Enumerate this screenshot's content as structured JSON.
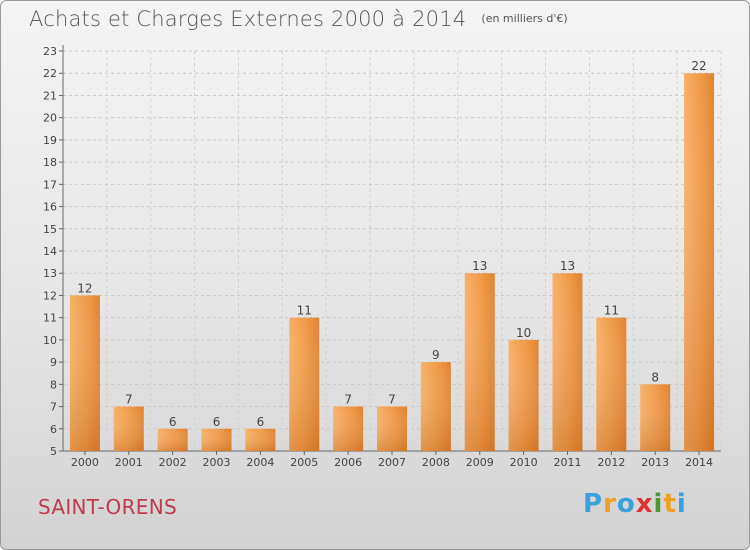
{
  "header": {
    "title": "Achats et Charges Externes 2000 à 2014",
    "subtitle": "(en milliers d'€)"
  },
  "footer": {
    "commune": "SAINT-ORENS",
    "logo": {
      "letters": [
        "P",
        "r",
        "o",
        "x",
        "i",
        "t",
        "i"
      ],
      "colors": [
        "#3aa0d8",
        "#f0a020",
        "#3aa0d8",
        "#e03030",
        "#4a9a30",
        "#f0a020",
        "#3aa0d8"
      ]
    }
  },
  "chart_data": {
    "type": "bar",
    "title": "Achats et Charges Externes 2000 à 2014",
    "subtitle": "(en milliers d'€)",
    "categories": [
      "2000",
      "2001",
      "2002",
      "2003",
      "2004",
      "2005",
      "2006",
      "2007",
      "2008",
      "2009",
      "2010",
      "2011",
      "2012",
      "2013",
      "2014"
    ],
    "values": [
      12,
      7,
      6,
      6,
      6,
      11,
      7,
      7,
      9,
      13,
      10,
      13,
      11,
      8,
      22
    ],
    "ylim": [
      5,
      23
    ],
    "yticks": [
      5,
      6,
      7,
      8,
      9,
      10,
      11,
      12,
      13,
      14,
      15,
      16,
      17,
      18,
      19,
      20,
      21,
      22,
      23
    ],
    "grid": true,
    "colors": {
      "bar_light": "#f6a85a",
      "bar_dark": "#d9752a"
    }
  }
}
